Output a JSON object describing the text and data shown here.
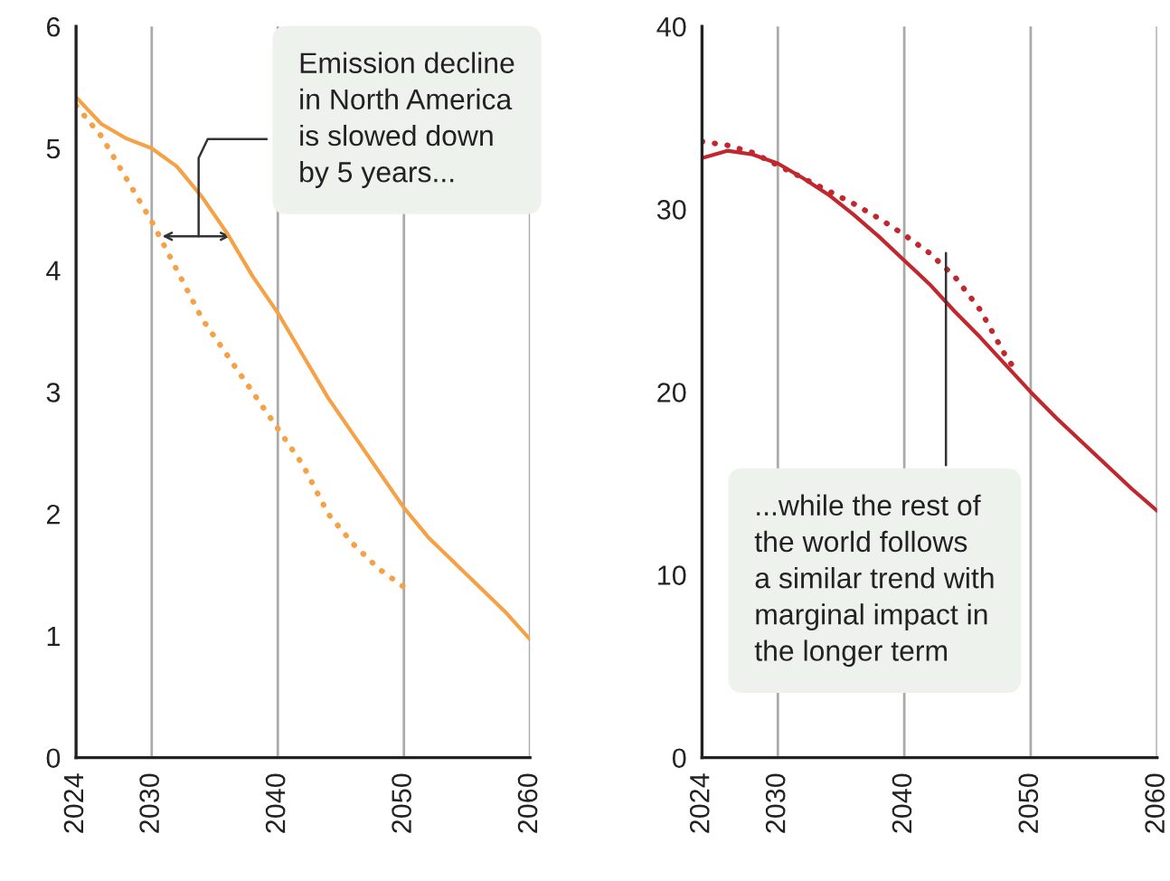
{
  "chart_data": [
    {
      "type": "line",
      "x": [
        2024,
        2026,
        2028,
        2030,
        2032,
        2034,
        2036,
        2038,
        2040,
        2042,
        2044,
        2046,
        2048,
        2050,
        2052,
        2054,
        2056,
        2058,
        2060
      ],
      "series": [
        {
          "color": "#f5a145",
          "line_style": "solid",
          "values": [
            5.42,
            5.2,
            5.08,
            5.0,
            4.85,
            4.6,
            4.3,
            3.95,
            3.65,
            3.3,
            2.95,
            2.65,
            2.35,
            2.05,
            1.8,
            1.6,
            1.4,
            1.2,
            0.97
          ]
        },
        {
          "color": "#f5a145",
          "line_style": "dotted",
          "x": [
            2024,
            2026,
            2028,
            2030,
            2032,
            2034,
            2036,
            2038,
            2040,
            2042,
            2044,
            2046,
            2048,
            2050
          ],
          "values": [
            5.35,
            5.1,
            4.75,
            4.4,
            4.0,
            3.6,
            3.3,
            3.0,
            2.7,
            2.4,
            2.0,
            1.75,
            1.55,
            1.4
          ]
        }
      ],
      "xlim": [
        2024,
        2060
      ],
      "xticks": [
        2024,
        2030,
        2040,
        2050,
        2060
      ],
      "ylim": [
        0,
        6
      ],
      "yticks": [
        0,
        1,
        2,
        3,
        4,
        5,
        6
      ],
      "grid": "x",
      "annotations": [
        "Emission decline\nin North America\nis slowed down\nby 5 years..."
      ]
    },
    {
      "type": "line",
      "x": [
        2024,
        2026,
        2028,
        2030,
        2032,
        2034,
        2036,
        2038,
        2040,
        2042,
        2044,
        2046,
        2048,
        2050,
        2052,
        2054,
        2056,
        2058,
        2060
      ],
      "series": [
        {
          "color": "#c0282d",
          "line_style": "solid",
          "values": [
            32.8,
            33.2,
            33.0,
            32.5,
            31.7,
            30.8,
            29.7,
            28.5,
            27.2,
            25.9,
            24.4,
            23.0,
            21.5,
            20.0,
            18.6,
            17.3,
            16.0,
            14.7,
            13.5
          ]
        },
        {
          "color": "#c0282d",
          "line_style": "dotted",
          "x": [
            2024,
            2026,
            2028,
            2030,
            2032,
            2034,
            2036,
            2038,
            2040,
            2042,
            2044,
            2046,
            2048,
            2049
          ],
          "values": [
            33.7,
            33.5,
            33.1,
            32.4,
            31.7,
            31.0,
            30.3,
            29.5,
            28.6,
            27.6,
            26.3,
            24.5,
            22.0,
            21.0
          ]
        }
      ],
      "xlim": [
        2024,
        2060
      ],
      "xticks": [
        2024,
        2030,
        2040,
        2050,
        2060
      ],
      "ylim": [
        0,
        40
      ],
      "yticks": [
        0,
        10,
        20,
        30,
        40
      ],
      "grid": "x",
      "annotations": [
        "...while the rest of\nthe world follows\na similar trend with\nmarginal impact in\nthe longer term"
      ]
    }
  ]
}
